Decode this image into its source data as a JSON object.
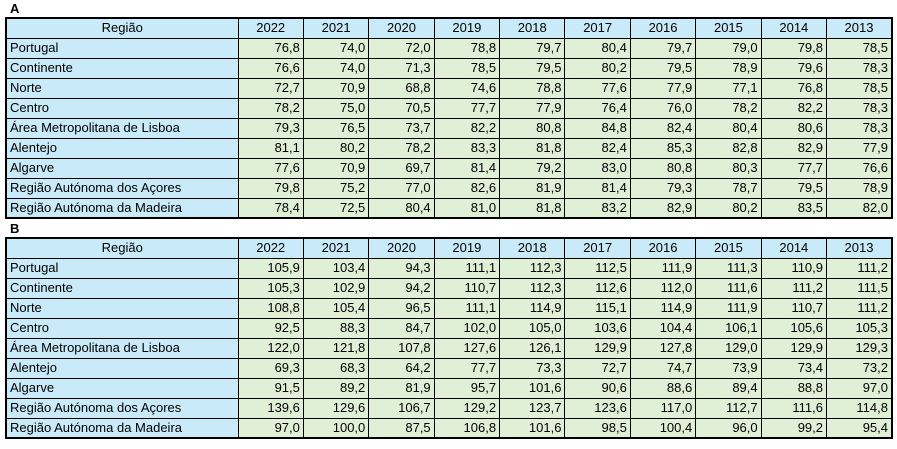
{
  "page": {
    "background": "#FFFFFF"
  },
  "colors": {
    "header-fill": "#C9EAF9",
    "region-fill": "#C9EAF9",
    "value-fill": "#E0F0D7",
    "grid-border": "#000000",
    "text": "#000000",
    "page-bg": "#FFFFFF"
  },
  "chart_data": [
    {
      "type": "table",
      "label": "A",
      "columns": [
        "Região",
        "2022",
        "2021",
        "2020",
        "2019",
        "2018",
        "2017",
        "2016",
        "2015",
        "2014",
        "2013"
      ],
      "rows": [
        {
          "region": "Portugal",
          "values": [
            "76,8",
            "74,0",
            "72,0",
            "78,8",
            "79,7",
            "80,4",
            "79,7",
            "79,0",
            "79,8",
            "78,5"
          ]
        },
        {
          "region": "Continente",
          "values": [
            "76,6",
            "74,0",
            "71,3",
            "78,5",
            "79,5",
            "80,2",
            "79,5",
            "78,9",
            "79,6",
            "78,3"
          ]
        },
        {
          "region": "Norte",
          "values": [
            "72,7",
            "70,9",
            "68,8",
            "74,6",
            "78,8",
            "77,6",
            "77,9",
            "77,1",
            "76,8",
            "78,5"
          ]
        },
        {
          "region": "Centro",
          "values": [
            "78,2",
            "75,0",
            "70,5",
            "77,7",
            "77,9",
            "76,4",
            "76,0",
            "78,2",
            "82,2",
            "78,3"
          ]
        },
        {
          "region": "Área Metropolitana de Lisboa",
          "values": [
            "79,3",
            "76,5",
            "73,7",
            "82,2",
            "80,8",
            "84,8",
            "82,4",
            "80,4",
            "80,6",
            "78,3"
          ]
        },
        {
          "region": "Alentejo",
          "values": [
            "81,1",
            "80,2",
            "78,2",
            "83,3",
            "81,8",
            "82,4",
            "85,3",
            "82,8",
            "82,9",
            "77,9"
          ]
        },
        {
          "region": "Algarve",
          "values": [
            "77,6",
            "70,9",
            "69,7",
            "81,4",
            "79,2",
            "83,0",
            "80,8",
            "80,3",
            "77,7",
            "76,6"
          ]
        },
        {
          "region": "Região Autónoma dos Açores",
          "values": [
            "79,8",
            "75,2",
            "77,0",
            "82,6",
            "81,9",
            "81,4",
            "79,3",
            "78,7",
            "79,5",
            "78,9"
          ]
        },
        {
          "region": "Região Autónoma da Madeira",
          "values": [
            "78,4",
            "72,5",
            "80,4",
            "81,0",
            "81,8",
            "83,2",
            "82,9",
            "80,2",
            "83,5",
            "82,0"
          ]
        }
      ]
    },
    {
      "type": "table",
      "label": "B",
      "columns": [
        "Região",
        "2022",
        "2021",
        "2020",
        "2019",
        "2018",
        "2017",
        "2016",
        "2015",
        "2014",
        "2013"
      ],
      "rows": [
        {
          "region": "Portugal",
          "values": [
            "105,9",
            "103,4",
            "94,3",
            "111,1",
            "112,3",
            "112,5",
            "111,9",
            "111,3",
            "110,9",
            "111,2"
          ]
        },
        {
          "region": "Continente",
          "values": [
            "105,3",
            "102,9",
            "94,2",
            "110,7",
            "112,3",
            "112,6",
            "112,0",
            "111,6",
            "111,2",
            "111,5"
          ]
        },
        {
          "region": "Norte",
          "values": [
            "108,8",
            "105,4",
            "96,5",
            "111,1",
            "114,9",
            "115,1",
            "114,9",
            "111,9",
            "110,7",
            "111,2"
          ]
        },
        {
          "region": "Centro",
          "values": [
            "92,5",
            "88,3",
            "84,7",
            "102,0",
            "105,0",
            "103,6",
            "104,4",
            "106,1",
            "105,6",
            "105,3"
          ]
        },
        {
          "region": "Área Metropolitana de Lisboa",
          "values": [
            "122,0",
            "121,8",
            "107,8",
            "127,6",
            "126,1",
            "129,9",
            "127,8",
            "129,0",
            "129,9",
            "129,3"
          ]
        },
        {
          "region": "Alentejo",
          "values": [
            "69,3",
            "68,3",
            "64,2",
            "77,7",
            "73,3",
            "72,7",
            "74,7",
            "73,9",
            "73,4",
            "73,2"
          ]
        },
        {
          "region": "Algarve",
          "values": [
            "91,5",
            "89,2",
            "81,9",
            "95,7",
            "101,6",
            "90,6",
            "88,6",
            "89,4",
            "88,8",
            "97,0"
          ]
        },
        {
          "region": "Região Autónoma dos Açores",
          "values": [
            "139,6",
            "129,6",
            "106,7",
            "129,2",
            "123,7",
            "123,6",
            "117,0",
            "112,7",
            "111,6",
            "114,8"
          ]
        },
        {
          "region": "Região Autónoma da Madeira",
          "values": [
            "97,0",
            "100,0",
            "87,5",
            "106,8",
            "101,6",
            "98,5",
            "100,4",
            "96,0",
            "99,2",
            "95,4"
          ]
        }
      ]
    }
  ]
}
